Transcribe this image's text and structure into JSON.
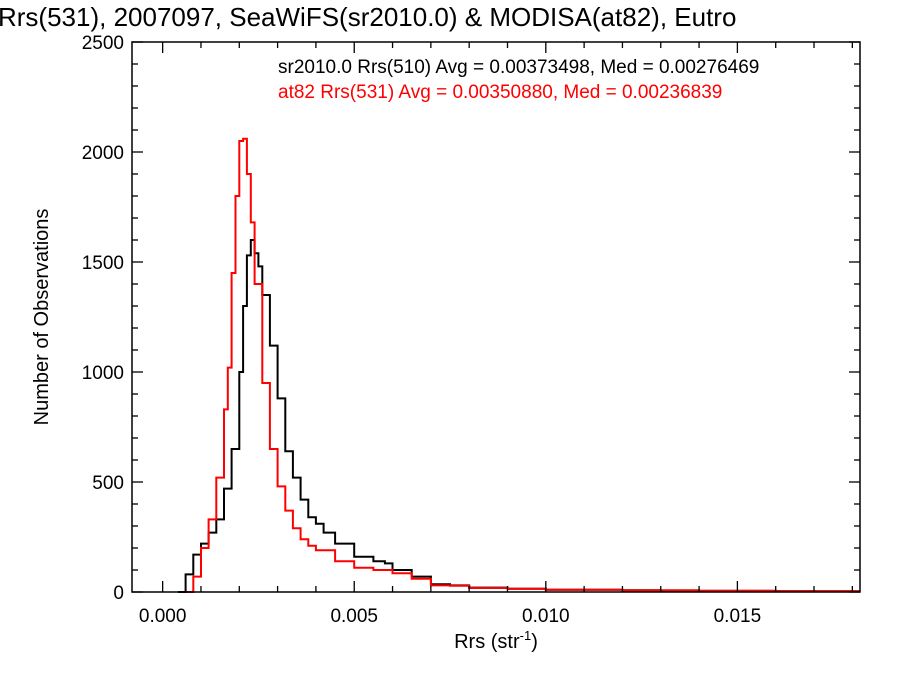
{
  "chart_data": {
    "type": "line",
    "title": "Rrs(531), 2007097, SeaWiFS(sr2010.0) & MODISA(at82), Eutro",
    "xlabel": "Rrs (str",
    "xlabel_sup": "-1",
    "xlabel_close": ")",
    "ylabel": "Number of Observations",
    "xlim": [
      -0.0008,
      0.0182
    ],
    "ylim": [
      0,
      2500
    ],
    "x_ticks": [
      0.0,
      0.005,
      0.01,
      0.015
    ],
    "x_tick_labels": [
      "0.000",
      "0.005",
      "0.010",
      "0.015"
    ],
    "y_ticks": [
      0,
      500,
      1000,
      1500,
      2000,
      2500
    ],
    "y_tick_labels": [
      "0",
      "500",
      "1000",
      "1500",
      "2000",
      "2500"
    ],
    "grid": false,
    "legend_position": "top-right",
    "series": [
      {
        "name": "sr2010.0 Rrs(510) Avg = 0.00373498, Med = 0.00276469",
        "color": "#000000",
        "x": [
          0.0004,
          0.0006,
          0.0008,
          0.001,
          0.0012,
          0.0014,
          0.0016,
          0.0018,
          0.002,
          0.0021,
          0.0022,
          0.0023,
          0.0024,
          0.0025,
          0.0026,
          0.0028,
          0.003,
          0.0032,
          0.0034,
          0.0036,
          0.0038,
          0.004,
          0.0042,
          0.0045,
          0.005,
          0.0055,
          0.0058,
          0.006,
          0.0065,
          0.007,
          0.0075,
          0.008,
          0.009,
          0.01,
          0.011,
          0.012,
          0.013,
          0.014,
          0.015,
          0.016,
          0.017,
          0.018
        ],
        "y": [
          0,
          80,
          170,
          220,
          270,
          330,
          470,
          650,
          1000,
          1300,
          1530,
          1600,
          1540,
          1480,
          1350,
          1120,
          880,
          640,
          520,
          420,
          340,
          310,
          270,
          220,
          160,
          140,
          130,
          100,
          70,
          35,
          30,
          20,
          15,
          10,
          10,
          8,
          6,
          5,
          5,
          4,
          3,
          3
        ]
      },
      {
        "name": "at82 Rrs(531) Avg = 0.00350880, Med = 0.00236839",
        "color": "#ff0000",
        "x": [
          0.0006,
          0.0008,
          0.001,
          0.0012,
          0.0014,
          0.0016,
          0.0017,
          0.0018,
          0.0019,
          0.002,
          0.0021,
          0.0022,
          0.0023,
          0.0024,
          0.0026,
          0.0028,
          0.003,
          0.0032,
          0.0034,
          0.0036,
          0.0038,
          0.004,
          0.0045,
          0.005,
          0.0055,
          0.006,
          0.0065,
          0.007,
          0.0075,
          0.008,
          0.009,
          0.01,
          0.011,
          0.012,
          0.013,
          0.014,
          0.015,
          0.016,
          0.017,
          0.018
        ],
        "y": [
          0,
          70,
          200,
          330,
          520,
          830,
          1020,
          1450,
          1800,
          2050,
          2060,
          1900,
          1680,
          1400,
          950,
          650,
          480,
          370,
          290,
          240,
          210,
          190,
          140,
          110,
          100,
          85,
          60,
          30,
          28,
          18,
          15,
          10,
          10,
          8,
          8,
          6,
          6,
          4,
          4,
          3
        ]
      }
    ]
  }
}
